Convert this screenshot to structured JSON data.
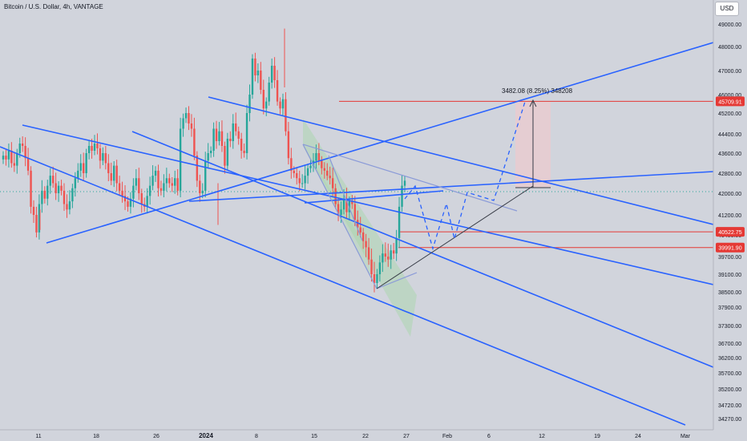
{
  "header": {
    "title": "Bitcoin / U.S. Dollar, 4h, VANTAGE",
    "currency_button": "USD"
  },
  "colors": {
    "background": "#d1d4dc",
    "trendline": "#2962ff",
    "channel_fill": "#a5d6a7",
    "level_line": "#e53935",
    "up_candle": "#26a69a",
    "down_candle": "#ef5350",
    "projection": "#2962ff",
    "target_box": "#f5c6cb"
  },
  "chart_data": {
    "type": "candlestick",
    "symbol": "Bitcoin / U.S. Dollar",
    "interval": "4h",
    "source": "VANTAGE",
    "x_axis": {
      "tick_labels": [
        "11",
        "18",
        "26",
        "2024",
        "8",
        "15",
        "22",
        "27",
        "Feb",
        "6",
        "12",
        "19",
        "24",
        "Mar"
      ]
    },
    "y_axis": {
      "ylim": [
        34000,
        49400
      ],
      "tick_labels": [
        "49000.00",
        "48000.00",
        "47000.00",
        "46000.00",
        "45200.00",
        "44400.00",
        "43600.00",
        "42800.00",
        "42000.00",
        "41200.00",
        "40400.00",
        "39700.00",
        "39100.00",
        "38500.00",
        "37900.00",
        "37300.00",
        "36700.00",
        "36200.00",
        "35700.00",
        "35200.00",
        "34720.00",
        "34270.00"
      ]
    },
    "levels": [
      {
        "value": 45709.91,
        "label": "45709.91"
      },
      {
        "value": 40522.75,
        "label": "40522.75"
      },
      {
        "value": 39991.9,
        "label": "39991.90"
      }
    ],
    "measure": {
      "label": "3482.08 (8.25%) 348208",
      "from": 42228,
      "to": 45709.91
    },
    "candles_close": [
      43500,
      43350,
      43700,
      43200,
      43100,
      43600,
      44000,
      43900,
      43400,
      42900,
      41500,
      41200,
      40500,
      41600,
      42100,
      41800,
      42300,
      42700,
      42400,
      42000,
      42300,
      42100,
      41600,
      41400,
      41700,
      42200,
      42600,
      42900,
      43200,
      42800,
      43600,
      43900,
      43700,
      44000,
      43800,
      43300,
      43600,
      43200,
      42800,
      42500,
      43100,
      42400,
      42100,
      41900,
      41700,
      41500,
      41800,
      42300,
      42600,
      42000,
      41600,
      41500,
      41900,
      42300,
      42700,
      42900,
      42200,
      42100,
      42400,
      42600,
      42400,
      42300,
      42600,
      42100,
      44600,
      45000,
      45200,
      44800,
      44600,
      43500,
      42500,
      42000,
      42100,
      43300,
      43600,
      43700,
      44600,
      44100,
      44500,
      43900,
      43100,
      44200,
      44100,
      44800,
      44500,
      44200,
      43700,
      43600,
      45200,
      46000,
      47500,
      46800,
      47000,
      46200,
      45400,
      45700,
      46500,
      47200,
      46600,
      45700,
      45400,
      45800,
      44500,
      43400,
      42900,
      42800,
      42600,
      42400,
      42400,
      42700,
      43000,
      43100,
      43300,
      43600,
      43300,
      43000,
      42900,
      42700,
      42600,
      42200,
      41600,
      41200,
      41400,
      41800,
      41300,
      41700,
      41600,
      41000,
      40700,
      40500,
      40200,
      40000,
      39600,
      39100,
      38800,
      39100,
      39500,
      39800,
      39700,
      39600,
      39900,
      39800,
      40300,
      41500,
      42300,
      42500
    ],
    "annotations": {
      "descending_channel_lines": 4,
      "ascending_trendlines": 3,
      "projected_path": "dashed zigzag up to 45709.91"
    }
  }
}
